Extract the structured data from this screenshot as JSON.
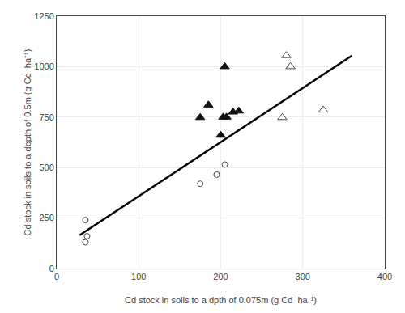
{
  "chart_data": {
    "type": "scatter",
    "xlabel": "Cd stock in soils to a dpth of 0.075m (g Cd  ha⁻¹)",
    "ylabel": "Cd stock in soils to a depth of 0.5m (g Cd  ha⁻¹)",
    "xlim": [
      0,
      400
    ],
    "ylim": [
      0,
      1250
    ],
    "xticks": [
      0,
      100,
      200,
      300,
      400
    ],
    "yticks": [
      0,
      250,
      500,
      750,
      1000,
      1250
    ],
    "grid": true,
    "series": [
      {
        "x": [
          35,
          37
        ],
        "values": [
          130,
          160
        ],
        "marker": "circle-open",
        "color": "#444444"
      },
      {
        "x": [
          35,
          175,
          195,
          205
        ],
        "values": [
          240,
          420,
          465,
          515
        ],
        "marker": "circle-open",
        "color": "#444444"
      },
      {
        "x": [
          175,
          185,
          200,
          203,
          207,
          215,
          222,
          205
        ],
        "values": [
          748,
          810,
          660,
          750,
          750,
          775,
          780,
          1000
        ],
        "marker": "triangle-up",
        "color": "#111111"
      },
      {
        "x": [
          275,
          280,
          285,
          325
        ],
        "values": [
          748,
          1055,
          1000,
          785
        ],
        "marker": "triangle-up-open",
        "color": "#444444"
      },
      {
        "type": "line",
        "x": [
          28,
          360
        ],
        "values": [
          165,
          1055
        ],
        "color": "black"
      }
    ]
  }
}
